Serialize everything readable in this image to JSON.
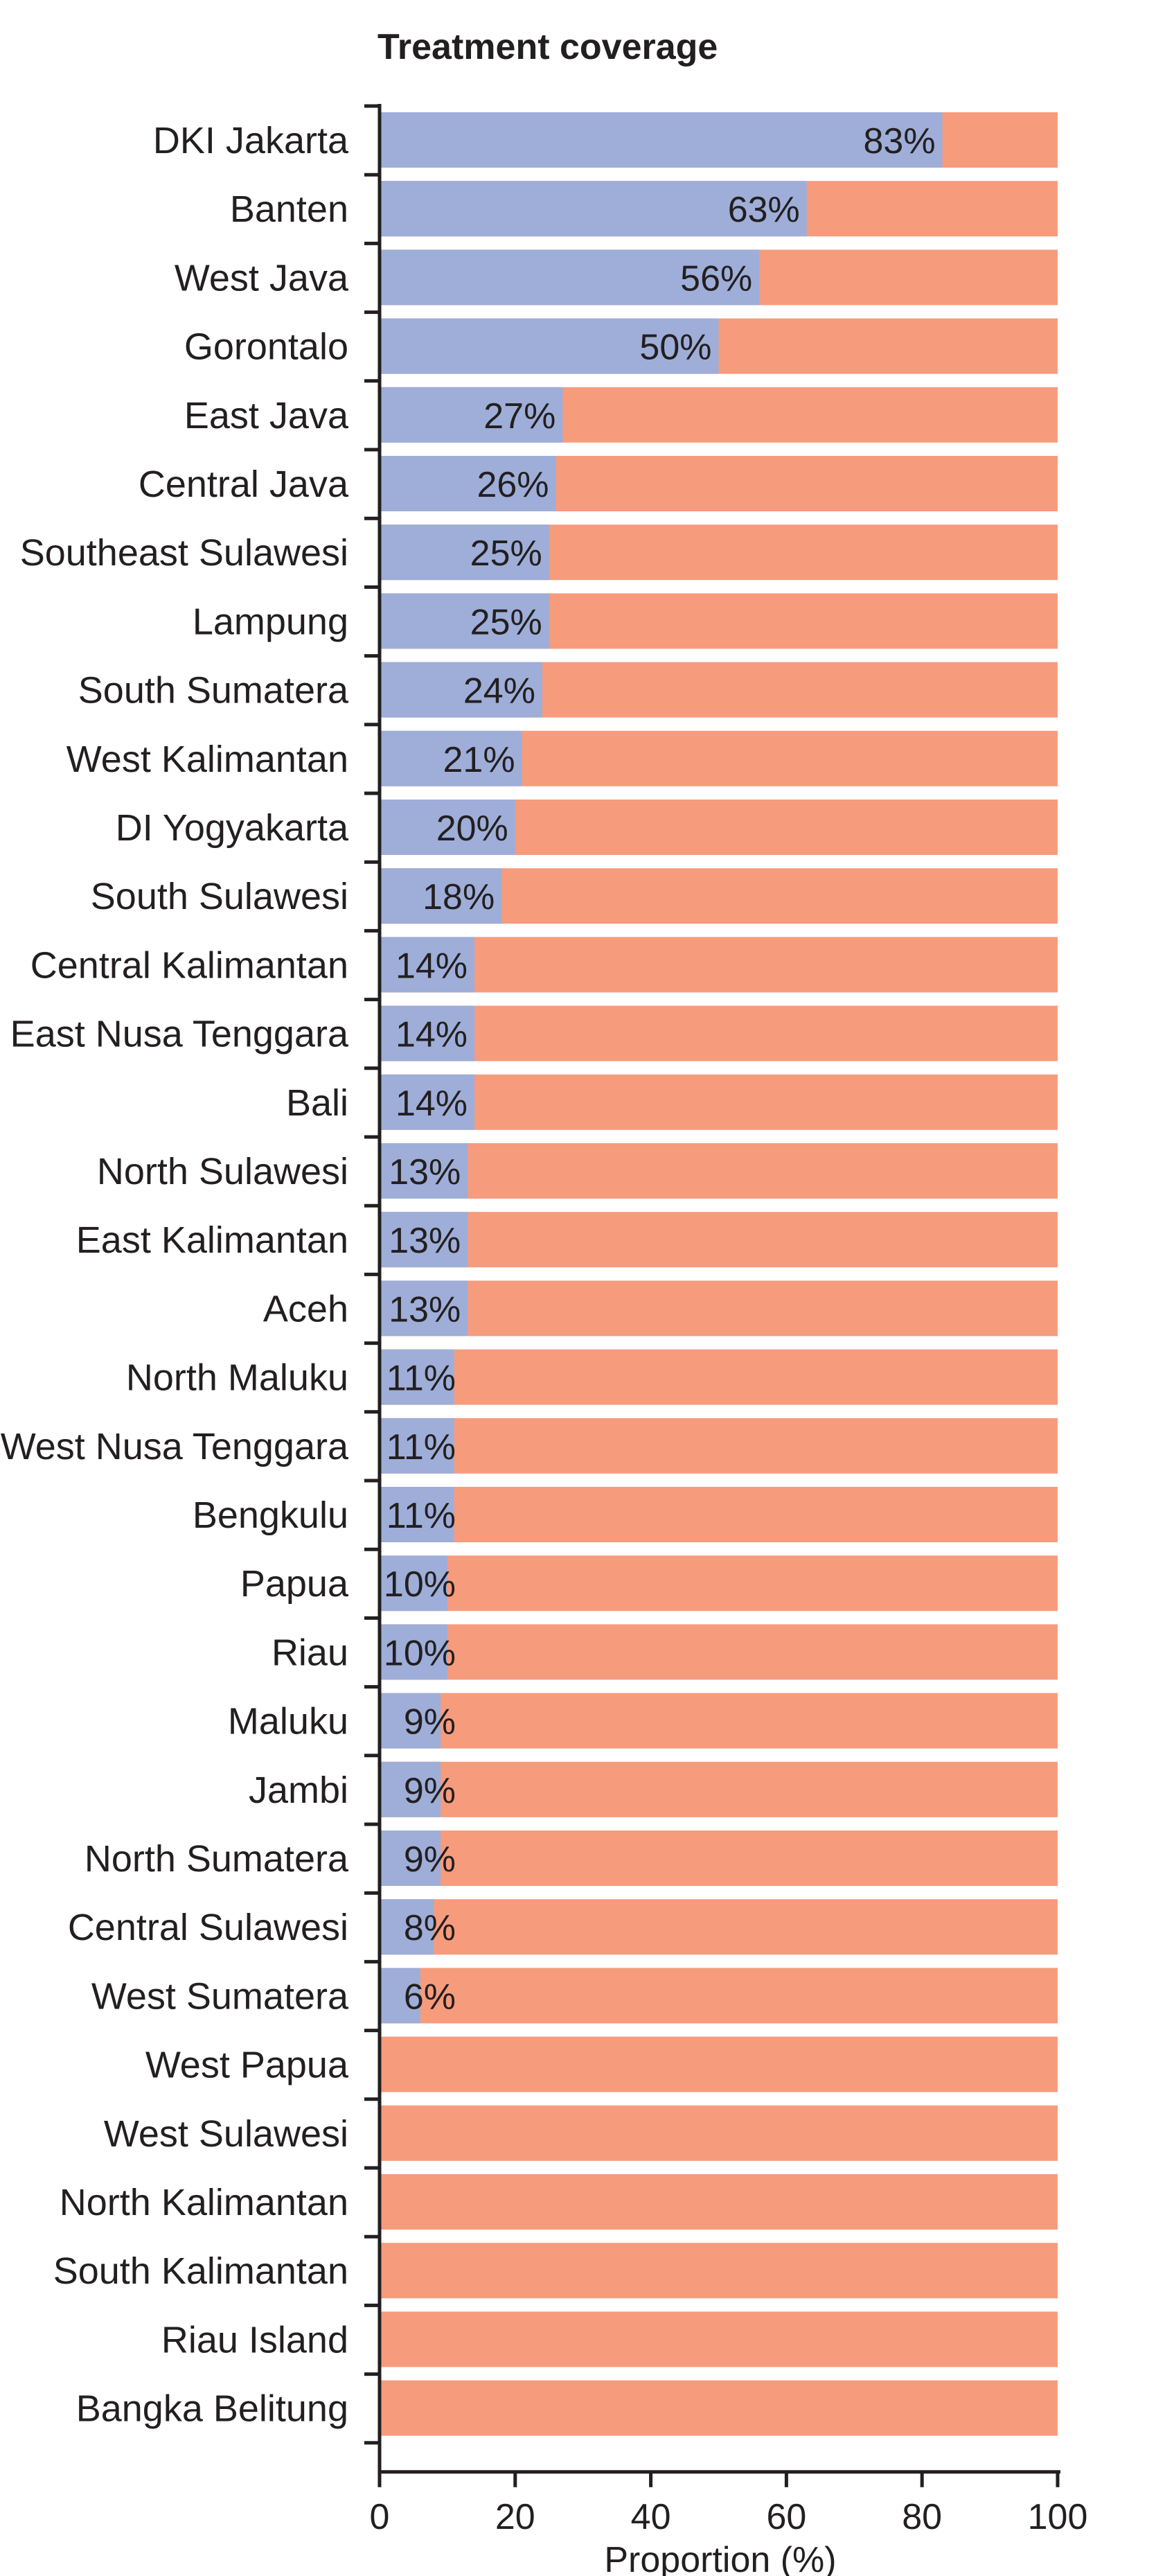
{
  "chart_data": {
    "type": "bar",
    "orientation": "horizontal",
    "stacked": true,
    "title": "Treatment coverage",
    "xlabel": "Proportion (%)",
    "ylabel": "",
    "xlim": [
      0,
      100
    ],
    "xticks": [
      "0",
      "20",
      "40",
      "60",
      "80",
      "100"
    ],
    "grid": false,
    "value_suffix": "%",
    "colors": {
      "covered": "#9eaed8",
      "uncovered": "#f79b7d"
    },
    "categories": [
      "DKI Jakarta",
      "Banten",
      "West Java",
      "Gorontalo",
      "East Java",
      "Central Java",
      "Southeast Sulawesi",
      "Lampung",
      "South Sumatera",
      "West Kalimantan",
      "DI Yogyakarta",
      "South Sulawesi",
      "Central Kalimantan",
      "East Nusa Tenggara",
      "Bali",
      "North Sulawesi",
      "East Kalimantan",
      "Aceh",
      "North Maluku",
      "West Nusa Tenggara",
      "Bengkulu",
      "Papua",
      "Riau",
      "Maluku",
      "Jambi",
      "North Sumatera",
      "Central Sulawesi",
      "West Sumatera",
      "West Papua",
      "West Sulawesi",
      "North Kalimantan",
      "South Kalimantan",
      "Riau Island",
      "Bangka Belitung"
    ],
    "values": [
      83,
      63,
      56,
      50,
      27,
      26,
      25,
      25,
      24,
      21,
      20,
      18,
      14,
      14,
      14,
      13,
      13,
      13,
      11,
      11,
      11,
      10,
      10,
      9,
      9,
      9,
      8,
      6,
      0,
      0,
      0,
      0,
      0,
      0
    ],
    "value_labels": [
      "83%",
      "63%",
      "56%",
      "50%",
      "27%",
      "26%",
      "25%",
      "25%",
      "24%",
      "21%",
      "20%",
      "18%",
      "14%",
      "14%",
      "14%",
      "13%",
      "13%",
      "13%",
      "11%",
      "11%",
      "11%",
      "10%",
      "10%",
      "9%",
      "9%",
      "9%",
      "8%",
      "6%",
      "",
      "",
      "",
      "",
      "",
      ""
    ]
  }
}
